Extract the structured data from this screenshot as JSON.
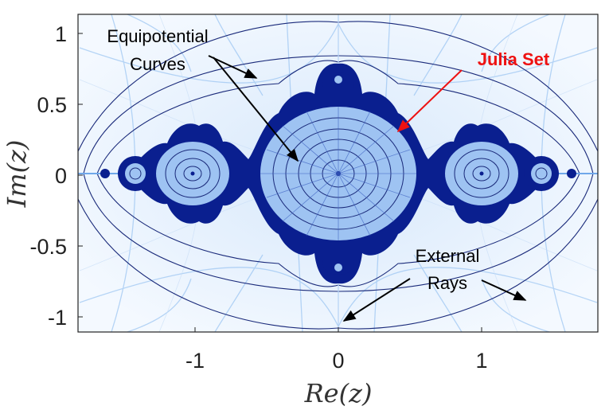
{
  "axes": {
    "x_ticks": [
      "-1",
      "0",
      "1"
    ],
    "y_ticks": [
      "1",
      "0.5",
      "0",
      "-0.5",
      "-1"
    ],
    "x_title": "Re(z)",
    "y_title": "Im(z)"
  },
  "annotations": {
    "equipotential_line1": "Equipotential",
    "equipotential_line2": "Curves",
    "julia_set": "Julia Set",
    "external_line1": "External",
    "external_line2": "Rays"
  },
  "colors": {
    "julia_fill": "#0a1f8f",
    "interior": "#9ec3f2",
    "curve_stroke": "#1a2a7a",
    "ray_stroke": "#7fb3ee",
    "arrow_black": "#000000",
    "arrow_red": "#ee1111"
  }
}
